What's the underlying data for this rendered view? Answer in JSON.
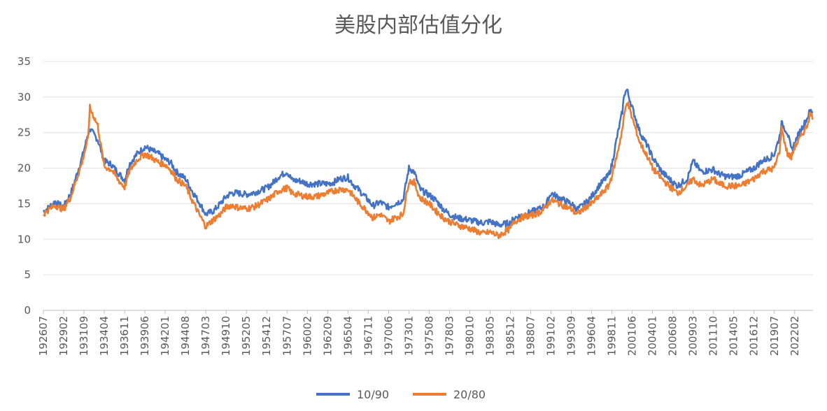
{
  "chart_data": {
    "type": "line",
    "title": "美股内部估值分化",
    "xlabel": "",
    "ylabel": "",
    "ylim": [
      0,
      35
    ],
    "yticks": [
      0,
      5,
      10,
      15,
      20,
      25,
      30,
      35
    ],
    "grid": "horizontal",
    "legend": "bottom",
    "x_tick_labels": [
      "192607",
      "192902",
      "193109",
      "193404",
      "193611",
      "193906",
      "194201",
      "194408",
      "194703",
      "194910",
      "195205",
      "195412",
      "195707",
      "196002",
      "196209",
      "196504",
      "196711",
      "197006",
      "197301",
      "197508",
      "197803",
      "198010",
      "198305",
      "198512",
      "198807",
      "199102",
      "199309",
      "199604",
      "199811",
      "200106",
      "200401",
      "200608",
      "200903",
      "201110",
      "201405",
      "201612",
      "201907",
      "202202"
    ],
    "x": [
      "1926-07",
      "1927-01",
      "1928-01",
      "1928-06",
      "1929-02",
      "1930-01",
      "1930-08",
      "1931-06",
      "1931-09",
      "1932-03",
      "1932-06",
      "1933-06",
      "1934-04",
      "1935-03",
      "1935-12",
      "1936-11",
      "1937-06",
      "1938-06",
      "1939-06",
      "1940-04",
      "1941-03",
      "1942-01",
      "1942-09",
      "1943-06",
      "1944-08",
      "1945-06",
      "1946-06",
      "1947-03",
      "1948-03",
      "1949-01",
      "1949-10",
      "1950-06",
      "1951-03",
      "1952-05",
      "1953-06",
      "1954-12",
      "1955-08",
      "1956-06",
      "1957-07",
      "1958-03",
      "1959-03",
      "1960-02",
      "1961-03",
      "1962-09",
      "1963-06",
      "1964-03",
      "1965-04",
      "1966-01",
      "1966-08",
      "1967-11",
      "1968-06",
      "1969-05",
      "1970-06",
      "1971-03",
      "1972-04",
      "1973-01",
      "1973-09",
      "1974-06",
      "1975-08",
      "1976-06",
      "1977-06",
      "1978-03",
      "1979-03",
      "1980-10",
      "1981-06",
      "1982-06",
      "1983-05",
      "1984-06",
      "1985-12",
      "1986-06",
      "1987-09",
      "1988-07",
      "1989-09",
      "1990-06",
      "1991-02",
      "1992-03",
      "1993-09",
      "1994-06",
      "1995-06",
      "1996-04",
      "1997-03",
      "1998-06",
      "1998-11",
      "1999-06",
      "2000-03",
      "2000-06",
      "2000-10",
      "2001-06",
      "2002-06",
      "2003-06",
      "2004-01",
      "2005-03",
      "2006-08",
      "2007-03",
      "2008-06",
      "2009-03",
      "2010-03",
      "2011-10",
      "2012-06",
      "2013-06",
      "2014-05",
      "2015-03",
      "2016-12",
      "2017-12",
      "2018-12",
      "2019-07",
      "2020-03",
      "2020-06",
      "2021-03",
      "2021-09",
      "2022-02",
      "2022-09",
      "2023-03",
      "2023-09",
      "2024-01",
      "2024-06"
    ],
    "series": [
      {
        "name": "10/90",
        "color": "#4472C4",
        "values": [
          13.9,
          14.3,
          15.3,
          14.9,
          14.6,
          16.5,
          18.5,
          21.5,
          22.5,
          24.8,
          25.5,
          24.0,
          21.0,
          20.5,
          19.5,
          18.3,
          20.5,
          22.0,
          23.0,
          22.5,
          22.0,
          21.2,
          20.8,
          19.5,
          18.5,
          16.8,
          15.0,
          13.5,
          14.0,
          15.0,
          16.0,
          16.5,
          16.5,
          16.3,
          16.6,
          17.2,
          17.8,
          18.8,
          19.5,
          18.3,
          18.2,
          17.8,
          17.8,
          17.8,
          18.0,
          18.5,
          18.7,
          17.6,
          17.0,
          15.5,
          14.7,
          15.2,
          14.5,
          15.0,
          15.5,
          20.0,
          19.5,
          17.0,
          16.2,
          15.5,
          14.2,
          13.5,
          13.0,
          12.7,
          12.5,
          12.3,
          12.5,
          12.0,
          12.3,
          13.0,
          13.5,
          13.8,
          14.3,
          14.8,
          16.5,
          15.8,
          15.0,
          14.2,
          15.0,
          16.0,
          17.5,
          19.0,
          20.5,
          24.0,
          28.0,
          30.5,
          31.0,
          28.5,
          25.0,
          23.0,
          21.5,
          19.5,
          18.0,
          17.5,
          18.5,
          21.0,
          19.5,
          19.8,
          19.2,
          18.8,
          18.8,
          19.0,
          20.0,
          21.0,
          21.5,
          22.0,
          24.5,
          26.3,
          25.0,
          22.5,
          23.5,
          25.0,
          26.0,
          27.0,
          28.0,
          28.0
        ]
      },
      {
        "name": "20/80",
        "color": "#ED7D31",
        "values": [
          13.5,
          14.0,
          14.8,
          14.5,
          14.2,
          16.0,
          18.0,
          20.8,
          22.0,
          24.0,
          28.5,
          26.0,
          20.2,
          19.8,
          18.5,
          17.3,
          19.5,
          21.2,
          22.0,
          21.5,
          20.8,
          20.5,
          19.8,
          18.5,
          17.5,
          15.5,
          13.3,
          11.8,
          12.8,
          13.5,
          14.5,
          14.8,
          14.5,
          14.3,
          14.6,
          15.5,
          16.0,
          16.8,
          17.2,
          16.5,
          16.2,
          16.0,
          16.0,
          16.5,
          16.8,
          17.0,
          17.0,
          16.0,
          15.2,
          13.8,
          13.0,
          13.5,
          12.5,
          13.0,
          13.5,
          18.2,
          18.0,
          15.8,
          15.0,
          14.0,
          13.0,
          12.5,
          12.0,
          11.5,
          11.2,
          10.8,
          11.0,
          10.5,
          11.5,
          12.5,
          13.2,
          13.3,
          13.8,
          14.5,
          15.5,
          15.0,
          14.2,
          13.5,
          14.5,
          15.0,
          16.0,
          17.5,
          19.0,
          21.5,
          25.5,
          27.5,
          29.5,
          27.0,
          23.5,
          21.5,
          20.0,
          18.5,
          17.0,
          16.5,
          17.5,
          18.5,
          17.5,
          18.5,
          17.8,
          17.5,
          17.5,
          17.5,
          18.5,
          19.5,
          19.8,
          20.0,
          22.5,
          25.5,
          22.0,
          21.5,
          23.0,
          24.0,
          25.0,
          26.0,
          27.5,
          27.3
        ]
      }
    ]
  }
}
